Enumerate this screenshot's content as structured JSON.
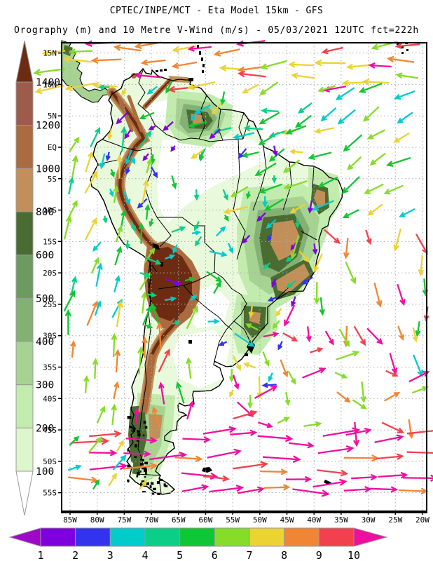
{
  "header": {
    "title": "CPTEC/INPE/MCT -  Eta Model 15km - GFS",
    "subtitle": "Orography (m) and 10 Metre V-Wind (m/s) - 05/03/2021 12UTC fct=222h"
  },
  "axes": {
    "lat_labels": [
      "15N",
      "10N",
      "5N",
      "EQ",
      "5S",
      "10S",
      "15S",
      "20S",
      "25S",
      "30S",
      "35S",
      "40S",
      "45S",
      "50S",
      "55S"
    ],
    "lon_labels": [
      "85W",
      "80W",
      "75W",
      "70W",
      "65W",
      "60W",
      "55W",
      "50W",
      "45W",
      "40W",
      "35W",
      "30W",
      "25W",
      "20W"
    ]
  },
  "orography_scale": {
    "unit": "m",
    "tick_labels_top_to_bottom": [
      "1400",
      "1200",
      "1000",
      "800",
      "600",
      "500",
      "400",
      "300",
      "200",
      "100"
    ],
    "segment_colors_top_to_bottom": [
      "#9D5C49",
      "#AA6B3E",
      "#C28F58",
      "#4A6B31",
      "#6C9A60",
      "#83B173",
      "#A6D392",
      "#C2EBAE",
      "#DDF6CB"
    ],
    "above_max_color": "#6D2C12",
    "below_min_color": "#FFFFFF"
  },
  "wind_scale": {
    "unit": "m/s",
    "tick_labels": [
      "1",
      "2",
      "3",
      "4",
      "5",
      "6",
      "7",
      "8",
      "9",
      "10"
    ],
    "segment_colors": [
      "#7F00DF",
      "#3333EE",
      "#00CCCC",
      "#0CCE86",
      "#0FC634",
      "#86DC28",
      "#EBD334",
      "#F08633",
      "#F2414E"
    ],
    "below_min_color": "#A008C9",
    "above_max_color": "#EE0FA0"
  },
  "terrain_palette": {
    "plain": "#E9FADC",
    "lowland_white": "#FFFFFF",
    "green_pale": "#C2EBAE",
    "green_mid": "#A6D392",
    "green_sage": "#83B173",
    "green_dark": "#4A6B31",
    "tan": "#C28F58",
    "brown": "#AA6B3E",
    "brown_dark": "#6D2C12"
  },
  "wind_field": {
    "regions": [
      {
        "name": "caribbean-easterlies",
        "x": [
          94,
          604
        ],
        "y": [
          66,
          118
        ],
        "sx": 36,
        "sy": 26,
        "jit": 9,
        "ang": [
          183,
          12
        ],
        "len": [
          36,
          8
        ],
        "colors": [
          "#F08633",
          "#F08633",
          "#EBD334",
          "#EBD334",
          "#EE0FA0",
          "#F2414E",
          "#86DC28"
        ],
        "p": 0.82
      },
      {
        "name": "northeast-trades",
        "x": [
          362,
          604
        ],
        "y": [
          122,
          310
        ],
        "sx": 37,
        "sy": 34,
        "jit": 9,
        "ang": [
          208,
          17
        ],
        "len": [
          29,
          6
        ],
        "colors": [
          "#86DC28",
          "#86DC28",
          "#0FC634",
          "#0FC634",
          "#EBD334",
          "#00CCCC"
        ],
        "p": 0.92
      },
      {
        "name": "equatorial-coastal-flow",
        "x": [
          300,
          470
        ],
        "y": [
          150,
          228
        ],
        "sx": 35,
        "sy": 30,
        "jit": 9,
        "ang": [
          200,
          25
        ],
        "len": [
          23,
          6
        ],
        "colors": [
          "#0FC634",
          "#86DC28",
          "#EBD334",
          "#00CCCC",
          "#0CCE86"
        ],
        "p": 0.8
      },
      {
        "name": "north-land-light-winds",
        "x": [
          152,
          330
        ],
        "y": [
          122,
          214
        ],
        "sx": 33,
        "sy": 30,
        "jit": 9,
        "ang": [
          225,
          45
        ],
        "len": [
          15,
          6
        ],
        "colors": [
          "#7F00DF",
          "#0FC634",
          "#00CCCC",
          "#EBD334",
          "#0CCE86"
        ],
        "p": 0.7
      },
      {
        "name": "amazon-light-winds",
        "x": [
          152,
          392
        ],
        "y": [
          216,
          340
        ],
        "sx": 33,
        "sy": 31,
        "jit": 9,
        "ang": [
          262,
          40
        ],
        "len": [
          13,
          5
        ],
        "colors": [
          "#7F00DF",
          "#3333EE",
          "#00CCCC",
          "#0CCE86",
          "#0FC634"
        ],
        "p": 0.72
      },
      {
        "name": "east-brazil-light-winds",
        "x": [
          392,
          478
        ],
        "y": [
          282,
          430
        ],
        "sx": 30,
        "sy": 29,
        "jit": 8,
        "ang": [
          240,
          40
        ],
        "len": [
          13,
          5
        ],
        "colors": [
          "#3333EE",
          "#3333EE",
          "#7F00DF",
          "#00CCCC",
          "#0CCE86"
        ],
        "p": 0.8
      },
      {
        "name": "pacific-peru-southerlies",
        "x": [
          94,
          204
        ],
        "y": [
          216,
          468
        ],
        "sx": 36,
        "sy": 33,
        "jit": 9,
        "ang": [
          72,
          18
        ],
        "len": [
          27,
          8
        ],
        "colors": [
          "#0FC634",
          "#86DC28",
          "#00CCCC",
          "#0CCE86",
          "#EBD334"
        ],
        "p": 0.88
      },
      {
        "name": "pacific-chile-southerlies",
        "x": [
          94,
          198
        ],
        "y": [
          470,
          624
        ],
        "sx": 36,
        "sy": 33,
        "jit": 9,
        "ang": [
          78,
          14
        ],
        "len": [
          30,
          8
        ],
        "colors": [
          "#86DC28",
          "#EBD334",
          "#F08633",
          "#0FC634"
        ],
        "p": 0.88
      },
      {
        "name": "chile-coast-strong-northward",
        "x": [
          200,
          300
        ],
        "y": [
          470,
          620
        ],
        "sx": 34,
        "sy": 33,
        "jit": 8,
        "ang": [
          85,
          25
        ],
        "len": [
          29,
          9
        ],
        "colors": [
          "#EE0FA0",
          "#F08633",
          "#F2414E",
          "#86DC28",
          "#0FC634"
        ],
        "p": 0.7
      },
      {
        "name": "altiplano-winds",
        "x": [
          206,
          330
        ],
        "y": [
          332,
          468
        ],
        "sx": 32,
        "sy": 31,
        "jit": 8,
        "ang": [
          15,
          60
        ],
        "len": [
          17,
          7
        ],
        "colors": [
          "#00CCCC",
          "#00CCCC",
          "#3333EE",
          "#7F00DF",
          "#0FC634",
          "#0CCE86"
        ],
        "p": 0.7
      },
      {
        "name": "se-brazil-coastal",
        "x": [
          330,
          420
        ],
        "y": [
          432,
          560
        ],
        "sx": 33,
        "sy": 31,
        "jit": 8,
        "ang": [
          210,
          60
        ],
        "len": [
          15,
          6
        ],
        "colors": [
          "#00CCCC",
          "#3333EE",
          "#0CCE86",
          "#86DC28",
          "#EBD334"
        ],
        "p": 0.72
      },
      {
        "name": "south-atlantic-gyre",
        "x": [
          422,
          604
        ],
        "y": [
          332,
          470
        ],
        "sx": 36,
        "sy": 33,
        "jit": 9,
        "ang": [
          -75,
          45
        ],
        "len": [
          27,
          9
        ],
        "colors": [
          "#F2414E",
          "#F08633",
          "#EBD334",
          "#86DC28",
          "#EE0FA0",
          "#0FC634"
        ],
        "p": 0.85
      },
      {
        "name": "south-atlantic-mix",
        "x": [
          332,
          604
        ],
        "y": [
          472,
          622
        ],
        "sx": 36,
        "sy": 32,
        "jit": 9,
        "ang": [
          -30,
          60
        ],
        "len": [
          26,
          9
        ],
        "colors": [
          "#86DC28",
          "#86DC28",
          "#EBD334",
          "#EE0FA0",
          "#F2414E",
          "#F08633",
          "#00CCCC"
        ],
        "p": 0.85
      },
      {
        "name": "southern-ocean-westerlies",
        "x": [
          94,
          604
        ],
        "y": [
          626,
          724
        ],
        "sx": 40,
        "sy": 25,
        "jit": 8,
        "ang": [
          2,
          10
        ],
        "len": [
          44,
          10
        ],
        "colors": [
          "#EE0FA0",
          "#EE0FA0",
          "#EE0FA0",
          "#F2414E",
          "#F08633"
        ],
        "p": 0.92
      },
      {
        "name": "southwest-corner-mix",
        "x": [
          94,
          200
        ],
        "y": [
          640,
          722
        ],
        "sx": 34,
        "sy": 30,
        "jit": 8,
        "ang": [
          45,
          30
        ],
        "len": [
          21,
          8
        ],
        "colors": [
          "#86DC28",
          "#0FC634",
          "#EBD334",
          "#00CCCC"
        ],
        "p": 0.6
      }
    ]
  }
}
